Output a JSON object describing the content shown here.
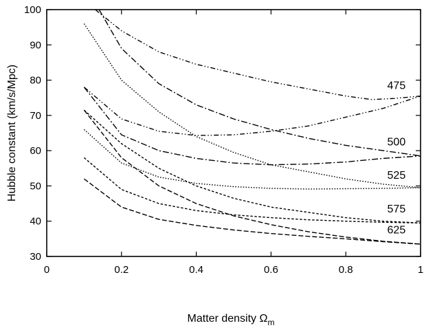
{
  "chart_data": {
    "type": "line",
    "xlabel": "Matter density Ω",
    "xlabel_subscript": "m",
    "ylabel": "Hubble constant (km/s/Mpc)",
    "xlim": [
      0,
      1
    ],
    "ylim": [
      30,
      100
    ],
    "x_ticks": [
      "0",
      "0.2",
      "0.4",
      "0.6",
      "0.8",
      "1"
    ],
    "y_ticks": [
      "30",
      "40",
      "50",
      "60",
      "70",
      "80",
      "90",
      "100"
    ],
    "grid": false,
    "legend": "none",
    "series": [
      {
        "label": "475",
        "dash": "dash-dot-dot",
        "values": [
          [
            0.13,
            100
          ],
          [
            0.2,
            94
          ],
          [
            0.3,
            88
          ],
          [
            0.4,
            84.5
          ],
          [
            0.5,
            82
          ],
          [
            0.6,
            79.5
          ],
          [
            0.7,
            77.5
          ],
          [
            0.8,
            75.5
          ],
          [
            0.87,
            74.5
          ],
          [
            0.93,
            74.8
          ],
          [
            1.0,
            75.5
          ]
        ]
      },
      {
        "label": "475",
        "dash": "dash-dot-dot",
        "values": [
          [
            0.1,
            78
          ],
          [
            0.2,
            69
          ],
          [
            0.3,
            65.5
          ],
          [
            0.4,
            64.3
          ],
          [
            0.5,
            64.5
          ],
          [
            0.6,
            65.5
          ],
          [
            0.7,
            67
          ],
          [
            0.8,
            69.5
          ],
          [
            0.9,
            72
          ],
          [
            1.0,
            75.5
          ]
        ]
      },
      {
        "label": "500",
        "dash": "dash-dot",
        "values": [
          [
            0.14,
            100
          ],
          [
            0.2,
            89
          ],
          [
            0.3,
            79
          ],
          [
            0.4,
            73
          ],
          [
            0.5,
            69
          ],
          [
            0.6,
            66
          ],
          [
            0.7,
            63.5
          ],
          [
            0.8,
            61.5
          ],
          [
            0.9,
            60
          ],
          [
            1.0,
            58.5
          ]
        ]
      },
      {
        "label": "500",
        "dash": "dash-dot",
        "values": [
          [
            0.1,
            78
          ],
          [
            0.2,
            64.5
          ],
          [
            0.3,
            60
          ],
          [
            0.4,
            57.8
          ],
          [
            0.5,
            56.5
          ],
          [
            0.6,
            56
          ],
          [
            0.7,
            56.2
          ],
          [
            0.8,
            56.8
          ],
          [
            0.9,
            57.8
          ],
          [
            1.0,
            58.5
          ]
        ]
      },
      {
        "label": "525",
        "dash": "dotted",
        "values": [
          [
            0.1,
            96
          ],
          [
            0.2,
            80
          ],
          [
            0.3,
            71
          ],
          [
            0.4,
            64
          ],
          [
            0.5,
            59.5
          ],
          [
            0.6,
            56
          ],
          [
            0.7,
            54
          ],
          [
            0.8,
            52
          ],
          [
            0.9,
            50.5
          ],
          [
            1.0,
            49.5
          ]
        ]
      },
      {
        "label": "525",
        "dash": "dotted",
        "values": [
          [
            0.1,
            66
          ],
          [
            0.2,
            56.5
          ],
          [
            0.3,
            52.5
          ],
          [
            0.4,
            50.7
          ],
          [
            0.5,
            49.8
          ],
          [
            0.6,
            49.3
          ],
          [
            0.7,
            49.1
          ],
          [
            0.8,
            49.2
          ],
          [
            0.9,
            49.3
          ],
          [
            1.0,
            49.5
          ]
        ]
      },
      {
        "label": "575",
        "dash": "short-dash",
        "values": [
          [
            0.1,
            71.5
          ],
          [
            0.2,
            62
          ],
          [
            0.3,
            55
          ],
          [
            0.4,
            50
          ],
          [
            0.5,
            46.5
          ],
          [
            0.6,
            44
          ],
          [
            0.7,
            42.5
          ],
          [
            0.8,
            41
          ],
          [
            0.9,
            40
          ],
          [
            1.0,
            39.5
          ]
        ]
      },
      {
        "label": "575",
        "dash": "short-dash",
        "values": [
          [
            0.1,
            58
          ],
          [
            0.2,
            49
          ],
          [
            0.3,
            45
          ],
          [
            0.4,
            43
          ],
          [
            0.5,
            41.8
          ],
          [
            0.6,
            41
          ],
          [
            0.7,
            40.4
          ],
          [
            0.8,
            40
          ],
          [
            0.9,
            39.7
          ],
          [
            1.0,
            39.5
          ]
        ]
      },
      {
        "label": "625",
        "dash": "long-dash",
        "values": [
          [
            0.1,
            71.5
          ],
          [
            0.2,
            58
          ],
          [
            0.3,
            50
          ],
          [
            0.4,
            45
          ],
          [
            0.5,
            41.5
          ],
          [
            0.6,
            39
          ],
          [
            0.7,
            37
          ],
          [
            0.8,
            35.5
          ],
          [
            0.9,
            34.3
          ],
          [
            1.0,
            33.5
          ]
        ]
      },
      {
        "label": "625",
        "dash": "long-dash",
        "values": [
          [
            0.1,
            52
          ],
          [
            0.2,
            44
          ],
          [
            0.3,
            40.5
          ],
          [
            0.4,
            38.8
          ],
          [
            0.5,
            37.5
          ],
          [
            0.6,
            36.5
          ],
          [
            0.7,
            35.7
          ],
          [
            0.8,
            35
          ],
          [
            0.9,
            34.2
          ],
          [
            1.0,
            33.5
          ]
        ]
      }
    ],
    "annotations": [
      {
        "text": "475",
        "x": 0.96,
        "y": 77.5
      },
      {
        "text": "500",
        "x": 0.96,
        "y": 61.5
      },
      {
        "text": "525",
        "x": 0.96,
        "y": 52
      },
      {
        "text": "575",
        "x": 0.96,
        "y": 42.5
      },
      {
        "text": "625",
        "x": 0.96,
        "y": 36.5
      }
    ]
  }
}
